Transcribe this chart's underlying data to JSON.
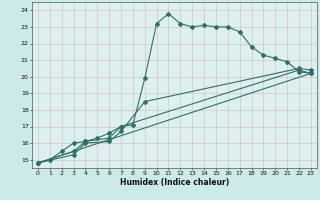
{
  "title": "",
  "xlabel": "Humidex (Indice chaleur)",
  "bg_color": "#cceae8",
  "plot_bg_color": "#ddf0ee",
  "grid_color": "#ccbbcc",
  "line_color": "#2d7068",
  "xlim": [
    -0.5,
    23.5
  ],
  "ylim": [
    14.5,
    24.5
  ],
  "xticks": [
    0,
    1,
    2,
    3,
    4,
    5,
    6,
    7,
    8,
    9,
    10,
    11,
    12,
    13,
    14,
    15,
    16,
    17,
    18,
    19,
    20,
    21,
    22,
    23
  ],
  "yticks": [
    15,
    16,
    17,
    18,
    19,
    20,
    21,
    22,
    23,
    24
  ],
  "line1_x": [
    0,
    1,
    2,
    3,
    4,
    5,
    6,
    7,
    8,
    9,
    10,
    11,
    12,
    13,
    14,
    15,
    16,
    17,
    18,
    19,
    20,
    21,
    22,
    23
  ],
  "line1_y": [
    14.8,
    15.0,
    15.5,
    16.0,
    16.1,
    16.3,
    16.6,
    17.0,
    17.1,
    19.9,
    23.2,
    23.8,
    23.2,
    23.0,
    23.1,
    23.0,
    23.0,
    22.7,
    21.8,
    21.3,
    21.1,
    20.9,
    20.3,
    20.2
  ],
  "line2_x": [
    0,
    3,
    4,
    6,
    7,
    9,
    22,
    23
  ],
  "line2_y": [
    14.8,
    15.3,
    16.0,
    16.1,
    16.7,
    18.5,
    20.5,
    20.4
  ],
  "line3_x": [
    0,
    3,
    4,
    6,
    7,
    22,
    23
  ],
  "line3_y": [
    14.8,
    15.5,
    16.1,
    16.3,
    17.0,
    20.4,
    20.2
  ],
  "line4_x": [
    0,
    23
  ],
  "line4_y": [
    14.8,
    20.2
  ]
}
